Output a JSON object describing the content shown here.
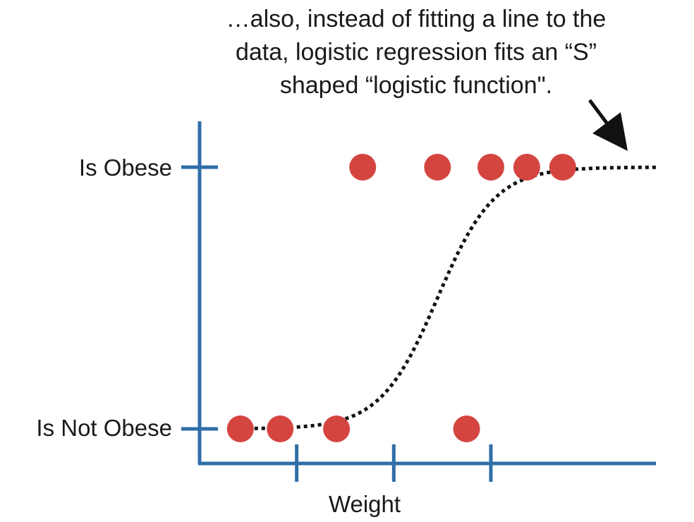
{
  "annotation": {
    "lines": [
      "…also, instead of fitting a line to the",
      "data, logistic regression fits an “S”",
      "shaped “logistic function\"."
    ]
  },
  "colors": {
    "axis": "#2f6ea8",
    "points": "#d44540",
    "curve": "#111111",
    "arrow": "#111111",
    "text": "#1a1a1a"
  },
  "chart_data": {
    "type": "scatter",
    "title": "",
    "xlabel": "Weight",
    "ylabel": "",
    "y_categories": [
      "Is Not Obese",
      "Is Obese"
    ],
    "x_ticks_labeled": false,
    "xlim": [
      0,
      4.7
    ],
    "ylim": [
      -0.08,
      1.0
    ],
    "grid": false,
    "legend": "none",
    "series": [
      {
        "kind": "points",
        "values": [
          {
            "x": 0.42,
            "y": 0
          },
          {
            "x": 0.83,
            "y": 0
          },
          {
            "x": 1.41,
            "y": 0
          },
          {
            "x": 2.75,
            "y": 0
          },
          {
            "x": 1.68,
            "y": 1
          },
          {
            "x": 2.45,
            "y": 1
          },
          {
            "x": 3.0,
            "y": 1
          },
          {
            "x": 3.37,
            "y": 1
          },
          {
            "x": 3.74,
            "y": 1
          }
        ]
      },
      {
        "kind": "curve",
        "line_style": "dotted",
        "function": "logistic",
        "x_range": [
          0.42,
          4.7
        ],
        "midpoint": 2.45,
        "steepness": 3.4
      }
    ]
  }
}
